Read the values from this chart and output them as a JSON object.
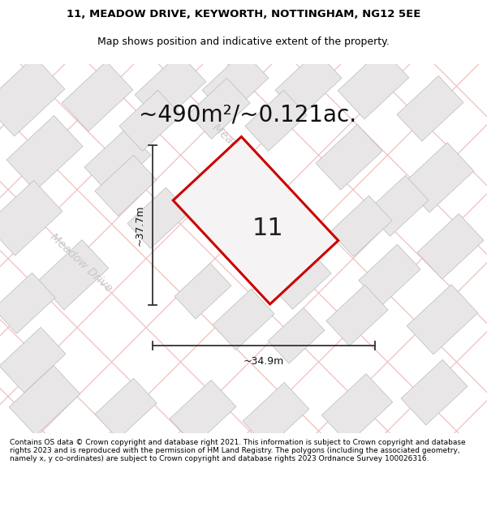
{
  "title_line1": "11, MEADOW DRIVE, KEYWORTH, NOTTINGHAM, NG12 5EE",
  "title_line2": "Map shows position and indicative extent of the property.",
  "area_text": "~490m²/~0.121ac.",
  "property_number": "11",
  "width_label": "~34.9m",
  "height_label": "~37.7m",
  "footer_text": "Contains OS data © Crown copyright and database right 2021. This information is subject to Crown copyright and database rights 2023 and is reproduced with the permission of HM Land Registry. The polygons (including the associated geometry, namely x, y co-ordinates) are subject to Crown copyright and database rights 2023 Ordnance Survey 100026316.",
  "map_bg": "#faf9f9",
  "property_fill": "#f0eeee",
  "property_edge": "#cc0000",
  "building_fill": "#e8e6e6",
  "building_edge": "#bbbbbb",
  "road_line_color": "#f0c0c0",
  "road_text_color": "#c8c8c8",
  "dim_line_color": "#333333",
  "title_fontsize": 9.5,
  "subtitle_fontsize": 9,
  "area_fontsize": 20,
  "number_fontsize": 22,
  "dim_fontsize": 9,
  "road_label_fontsize": 9
}
